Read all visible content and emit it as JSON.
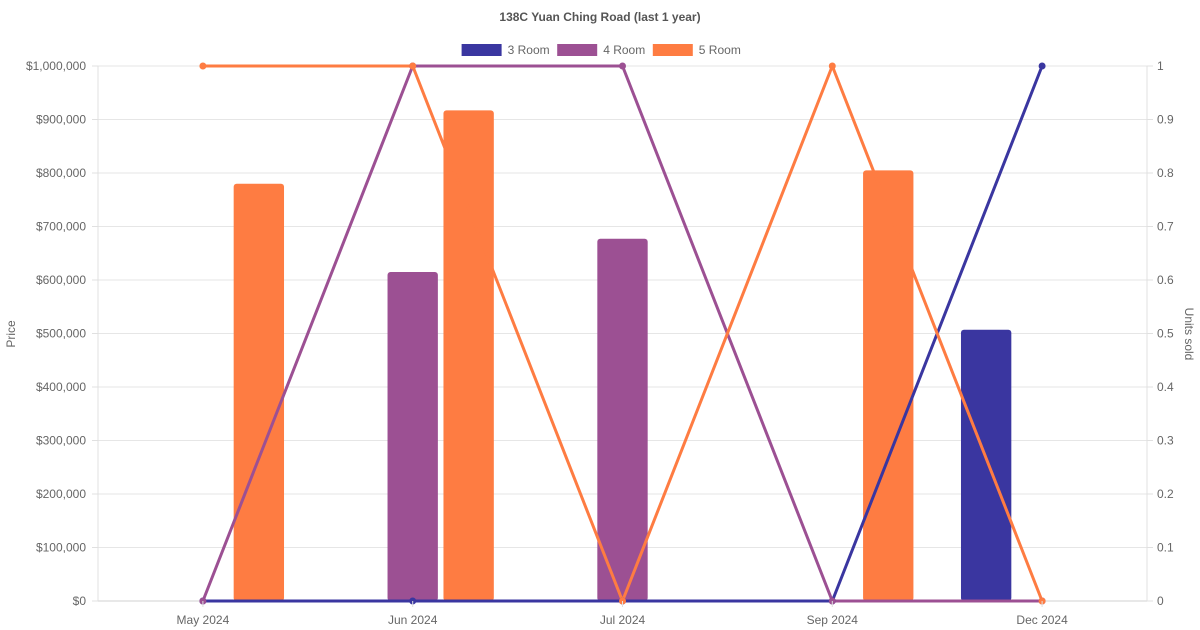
{
  "chart_data": {
    "type": "bar",
    "title": "138C Yuan Ching Road (last 1 year)",
    "categories": [
      "May 2024",
      "Jun 2024",
      "Jul 2024",
      "Sep 2024",
      "Dec 2024"
    ],
    "ylabel": "Price",
    "y2label": "Units sold",
    "ylim": [
      0,
      1000000
    ],
    "y2lim": [
      0,
      1
    ],
    "yticks": [
      "$0",
      "$100,000",
      "$200,000",
      "$300,000",
      "$400,000",
      "$500,000",
      "$600,000",
      "$700,000",
      "$800,000",
      "$900,000",
      "$1,000,000"
    ],
    "y2ticks": [
      "0",
      "0.1",
      "0.2",
      "0.3",
      "0.4",
      "0.5",
      "0.6",
      "0.7",
      "0.8",
      "0.9",
      "1"
    ],
    "grid": true,
    "legend_position": "top",
    "series": [
      {
        "name": "3 Room",
        "color": "#3a36a0",
        "price": [
          null,
          null,
          null,
          null,
          507000
        ],
        "units": [
          0,
          0,
          0,
          0,
          1
        ]
      },
      {
        "name": "4 Room",
        "color": "#9c5093",
        "price": [
          null,
          615000,
          677000,
          null,
          null
        ],
        "units": [
          0,
          1,
          1,
          0,
          0
        ]
      },
      {
        "name": "5 Room",
        "color": "#fe7c42",
        "price": [
          780000,
          917000,
          null,
          805000,
          null
        ],
        "units": [
          1,
          1,
          0,
          1,
          0
        ]
      }
    ]
  }
}
